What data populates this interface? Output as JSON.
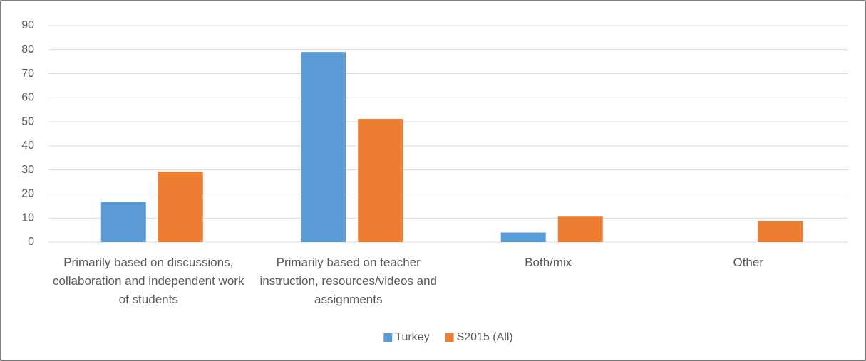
{
  "chart_data": {
    "type": "bar",
    "categories": [
      "Primarily based on discussions, collaboration and independent work of students",
      "Primarily based on teacher instruction, resources/videos and assignments",
      "Both/mix",
      "Other"
    ],
    "series": [
      {
        "name": "Turkey",
        "color": "#5b9bd5",
        "values": [
          16.7,
          79,
          4,
          null
        ]
      },
      {
        "name": "S2015 (All)",
        "color": "#ed7d31",
        "values": [
          29.3,
          51.2,
          10.6,
          8.7
        ]
      }
    ],
    "ylim": [
      0,
      90
    ],
    "yticks": [
      0,
      10,
      20,
      30,
      40,
      50,
      60,
      70,
      80,
      90
    ],
    "grid": true,
    "legend": "bottom"
  }
}
